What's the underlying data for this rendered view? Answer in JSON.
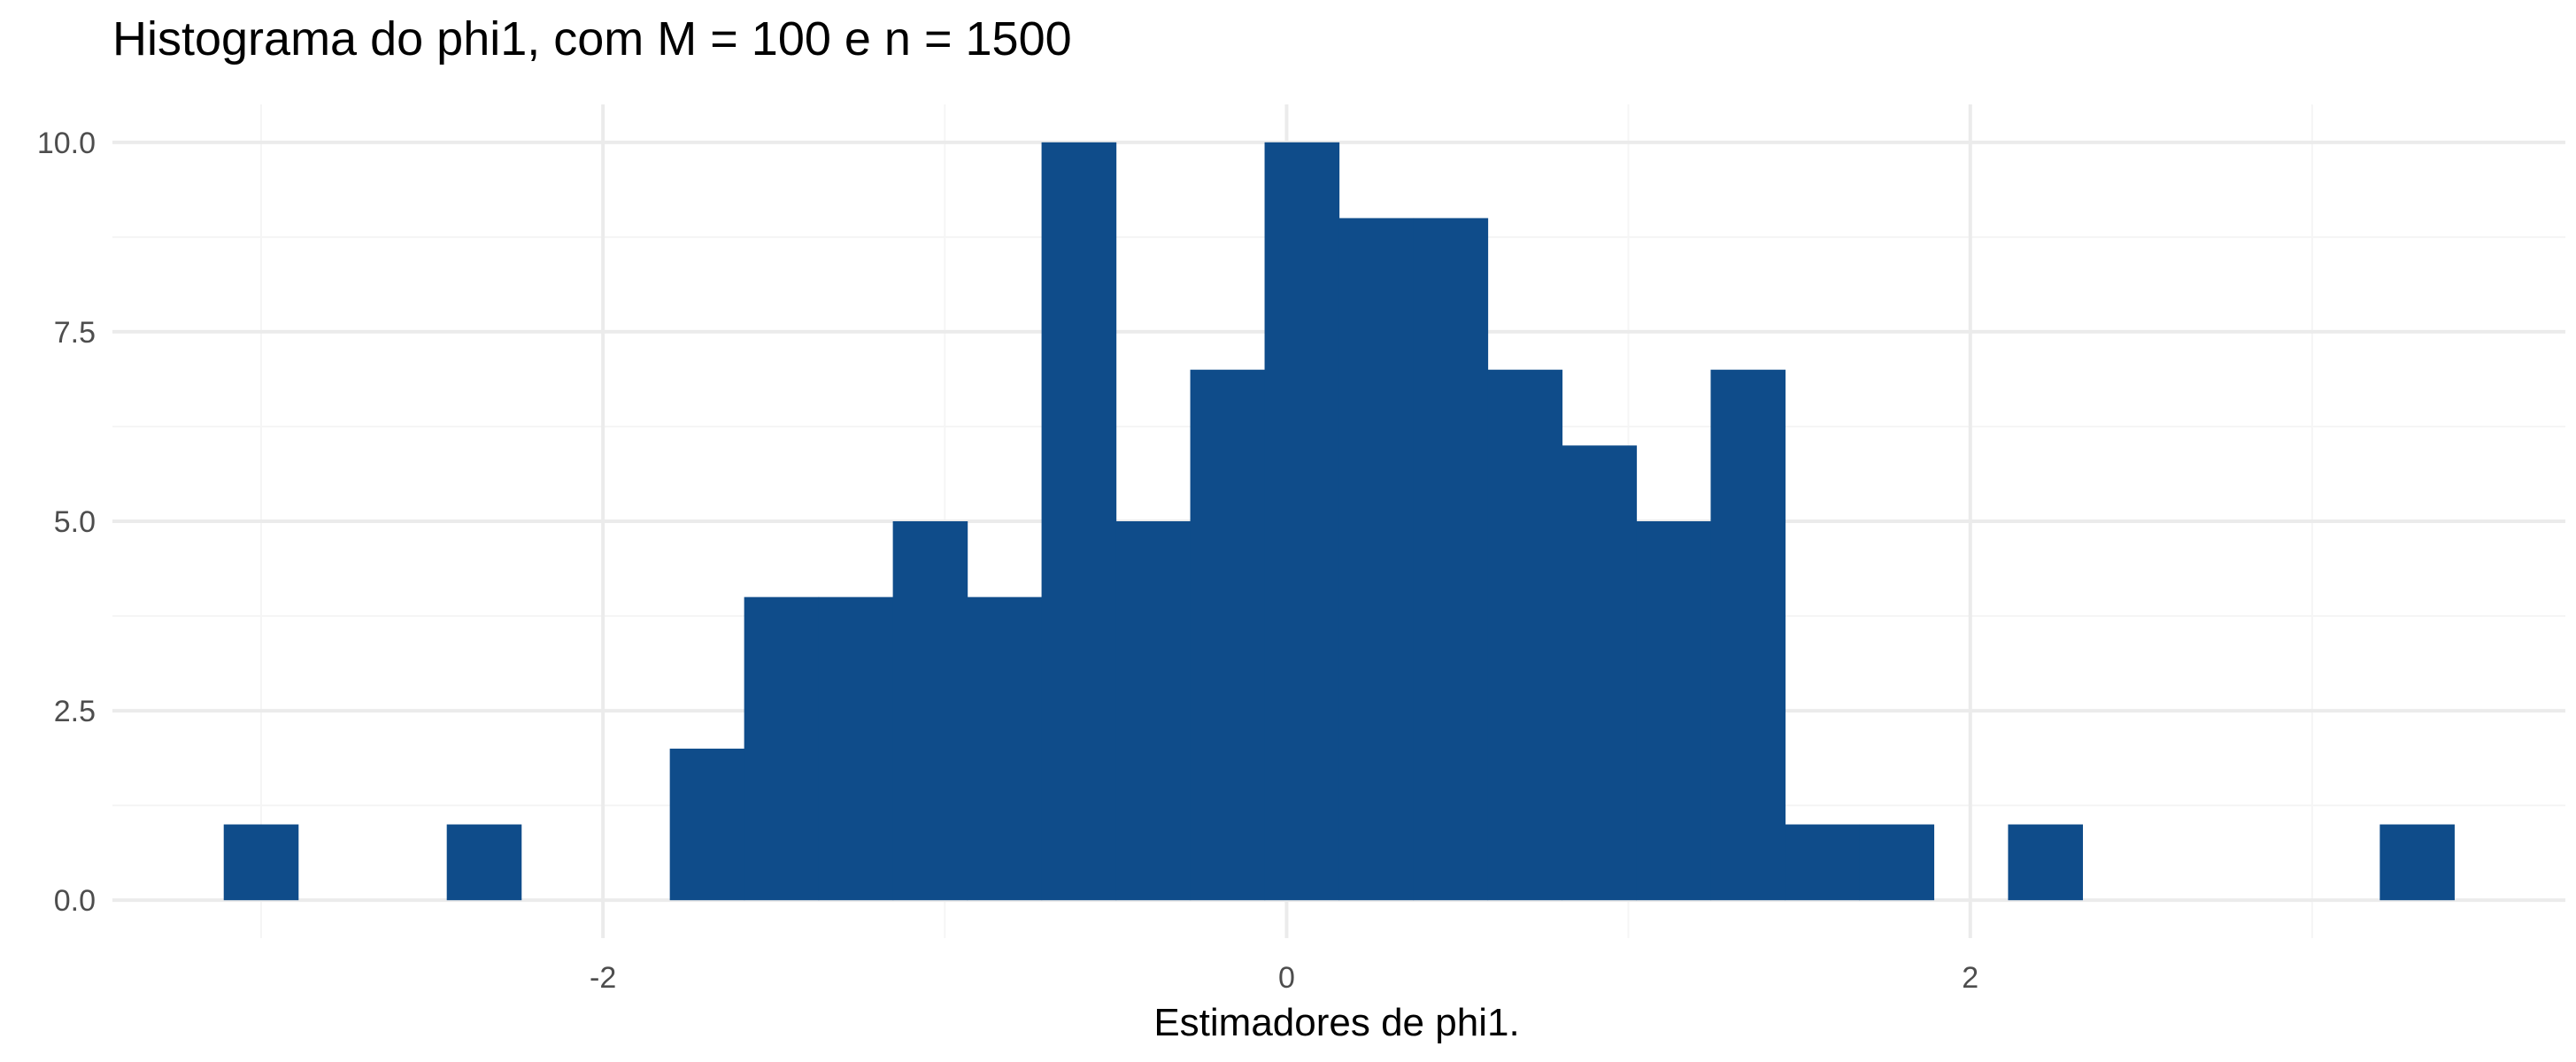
{
  "chart_data": {
    "type": "bar",
    "title": "Histograma do phi1, com M = 100 e n = 1500",
    "xlabel": "Estimadores de phi1.",
    "ylabel": "",
    "bin_width": 0.2175,
    "bins": [
      {
        "x0": -3.1094,
        "x1": -2.8919,
        "count": 1
      },
      {
        "x0": -2.8919,
        "x1": -2.6744,
        "count": 0
      },
      {
        "x0": -2.6744,
        "x1": -2.4569,
        "count": 0
      },
      {
        "x0": -2.4569,
        "x1": -2.2394,
        "count": 1
      },
      {
        "x0": -2.2394,
        "x1": -2.0219,
        "count": 0
      },
      {
        "x0": -2.0219,
        "x1": -1.8044,
        "count": 0
      },
      {
        "x0": -1.8044,
        "x1": -1.5869,
        "count": 2
      },
      {
        "x0": -1.5869,
        "x1": -1.3694,
        "count": 4
      },
      {
        "x0": -1.3694,
        "x1": -1.1519,
        "count": 4
      },
      {
        "x0": -1.1519,
        "x1": -0.9344,
        "count": 5
      },
      {
        "x0": -0.9344,
        "x1": -0.7169,
        "count": 4
      },
      {
        "x0": -0.7169,
        "x1": -0.4994,
        "count": 10
      },
      {
        "x0": -0.4994,
        "x1": -0.2819,
        "count": 5
      },
      {
        "x0": -0.2819,
        "x1": -0.0644,
        "count": 7
      },
      {
        "x0": -0.0644,
        "x1": 0.1531,
        "count": 10
      },
      {
        "x0": 0.1531,
        "x1": 0.3706,
        "count": 9
      },
      {
        "x0": 0.3706,
        "x1": 0.5881,
        "count": 9
      },
      {
        "x0": 0.5881,
        "x1": 0.8056,
        "count": 7
      },
      {
        "x0": 0.8056,
        "x1": 1.0231,
        "count": 6
      },
      {
        "x0": 1.0231,
        "x1": 1.2406,
        "count": 5
      },
      {
        "x0": 1.2406,
        "x1": 1.4581,
        "count": 7
      },
      {
        "x0": 1.4581,
        "x1": 1.6756,
        "count": 1
      },
      {
        "x0": 1.6756,
        "x1": 1.8931,
        "count": 1
      },
      {
        "x0": 1.8931,
        "x1": 2.1106,
        "count": 0
      },
      {
        "x0": 2.1106,
        "x1": 2.3281,
        "count": 1
      },
      {
        "x0": 2.3281,
        "x1": 2.5456,
        "count": 0
      },
      {
        "x0": 2.5456,
        "x1": 2.7631,
        "count": 0
      },
      {
        "x0": 2.7631,
        "x1": 2.9806,
        "count": 0
      },
      {
        "x0": 2.9806,
        "x1": 3.1981,
        "count": 0
      },
      {
        "x0": 3.1981,
        "x1": 3.4156,
        "count": 1
      }
    ],
    "xlim": [
      -3.435,
      3.741
    ],
    "ylim": [
      -0.5,
      10.5
    ],
    "x_ticks": [
      -2,
      0,
      2
    ],
    "x_tick_labels": [
      "-2",
      "0",
      "2"
    ],
    "y_ticks": [
      0.0,
      2.5,
      5.0,
      7.5,
      10.0
    ],
    "y_tick_labels": [
      "0.0",
      "2.5",
      "5.0",
      "7.5",
      "10.0"
    ],
    "x_minor_ticks": [
      -3,
      -1,
      1,
      3
    ],
    "y_minor_ticks": [
      1.25,
      3.75,
      6.25,
      8.75
    ],
    "grid": true,
    "bar_color": "#0F4C8A",
    "grid_major_color": "#EBEBEB",
    "grid_minor_color": "#F5F5F5"
  }
}
